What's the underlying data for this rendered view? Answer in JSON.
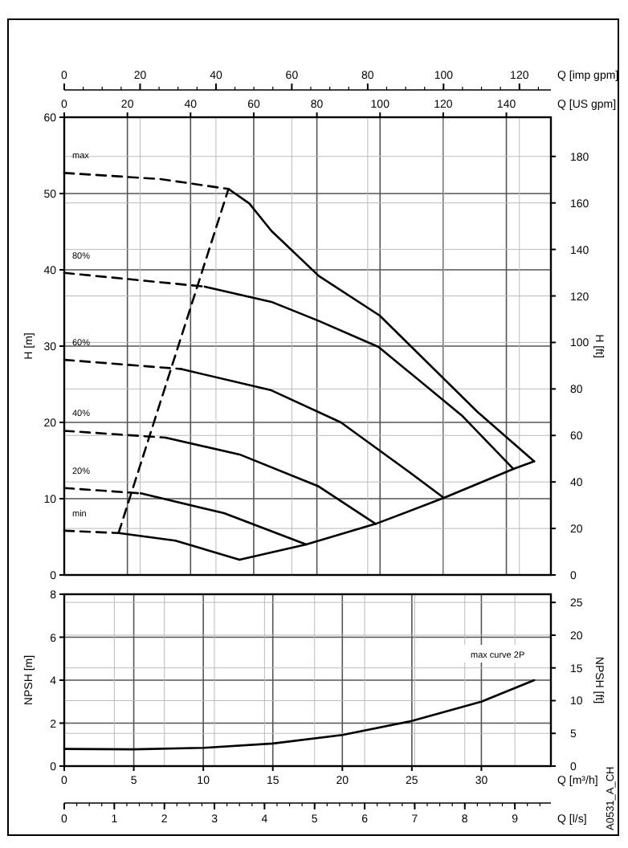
{
  "chart_data": [
    {
      "type": "line",
      "ylabel": "H [m]",
      "y2label": "H [ft]",
      "xlabel": "Q [US gpm]",
      "x2label": "Q [imp gpm]",
      "xlim": [
        0,
        154.1
      ],
      "xticks": [
        0,
        20,
        40,
        60,
        80,
        100,
        120,
        140
      ],
      "ylim": [
        0,
        60
      ],
      "yticks": [
        0,
        10,
        20,
        30,
        40,
        50,
        60
      ],
      "y2lim": [
        0,
        196.85
      ],
      "y2ticks": [
        0,
        20,
        40,
        60,
        80,
        100,
        120,
        140,
        160,
        180
      ],
      "x2lim": [
        0,
        128.3
      ],
      "x2ticks": [
        0,
        20,
        40,
        60,
        80,
        100,
        120
      ],
      "grid": true,
      "series": [
        {
          "name": "max",
          "color": "#000000",
          "line_style": "dashed",
          "x": [
            0,
            30.4,
            52.0
          ],
          "values": [
            52.7,
            51.9,
            50.6
          ]
        },
        {
          "color": "#000000",
          "line_style": "solid",
          "x": [
            52.0,
            58.6,
            65.6,
            80.6,
            99.9,
            130.8,
            148.8
          ],
          "values": [
            50.6,
            48.7,
            45.1,
            39.2,
            34.0,
            21.4,
            14.9
          ]
        },
        {
          "name": "80%",
          "color": "#000000",
          "line_style": "dashed",
          "x": [
            0,
            44.5
          ],
          "values": [
            39.6,
            37.8
          ]
        },
        {
          "color": "#000000",
          "line_style": "solid",
          "x": [
            44.5,
            65.6,
            80.6,
            99.5,
            125.9,
            142.2
          ],
          "values": [
            37.8,
            35.8,
            33.3,
            29.9,
            20.9,
            13.9
          ]
        },
        {
          "name": "60%",
          "color": "#000000",
          "line_style": "dashed",
          "x": [
            0,
            37.0
          ],
          "values": [
            28.2,
            27.0
          ]
        },
        {
          "color": "#000000",
          "line_style": "solid",
          "x": [
            37.0,
            65.6,
            87.6,
            107.9,
            120.2
          ],
          "values": [
            27.0,
            24.2,
            20.0,
            13.9,
            10.1
          ]
        },
        {
          "name": "40%",
          "color": "#000000",
          "line_style": "dashed",
          "x": [
            0,
            32.1
          ],
          "values": [
            18.9,
            18.0
          ]
        },
        {
          "color": "#000000",
          "line_style": "solid",
          "x": [
            32.1,
            55.5,
            80.6,
            98.6
          ],
          "values": [
            18.0,
            15.8,
            11.6,
            6.7
          ]
        },
        {
          "name": "20%",
          "color": "#000000",
          "line_style": "dashed",
          "x": [
            0,
            24.2
          ],
          "values": [
            11.4,
            10.7
          ]
        },
        {
          "color": "#000000",
          "line_style": "solid",
          "x": [
            24.2,
            50.6,
            76.6
          ],
          "values": [
            10.7,
            8.1,
            4.0
          ]
        },
        {
          "name": "min",
          "color": "#000000",
          "line_style": "dashed",
          "x": [
            0,
            17.2
          ],
          "values": [
            5.8,
            5.5
          ]
        },
        {
          "color": "#000000",
          "line_style": "solid",
          "x": [
            17.2,
            35.2,
            55.5
          ],
          "values": [
            5.5,
            4.5,
            2.0
          ]
        },
        {
          "color": "#000000",
          "line_style": "solid",
          "x": [
            55.5,
            76.6,
            98.6,
            120.2,
            142.2,
            148.8
          ],
          "values": [
            2.0,
            4.0,
            6.7,
            10.1,
            13.9,
            14.9
          ]
        },
        {
          "color": "#000000",
          "line_style": "dashed",
          "x": [
            17.2,
            52.0
          ],
          "values": [
            5.5,
            50.6
          ]
        }
      ]
    },
    {
      "type": "line",
      "xlabel": "Q [m³/h]",
      "x2label": "Q [l/s]",
      "ylabel": "NPSH [m]",
      "y2label": "NPSH [ft]",
      "xlim": [
        0,
        35
      ],
      "xticks": [
        0,
        5,
        10,
        15,
        20,
        25,
        30
      ],
      "x2lim": [
        0,
        9.72
      ],
      "x2ticks": [
        0,
        1,
        2,
        3,
        4,
        5,
        6,
        7,
        8,
        9
      ],
      "ylim": [
        0,
        8
      ],
      "yticks": [
        0,
        2,
        4,
        6,
        8
      ],
      "y2lim": [
        0,
        26.25
      ],
      "y2ticks": [
        0,
        5,
        10,
        15,
        20,
        25
      ],
      "grid": true,
      "annotations": [
        "A0531_A_CH"
      ],
      "series": [
        {
          "name": "max curve 2P",
          "color": "#000000",
          "line_style": "solid",
          "x": [
            0,
            5,
            10,
            15,
            20,
            25,
            30,
            33.8
          ],
          "values": [
            0.8,
            0.78,
            0.85,
            1.05,
            1.45,
            2.1,
            3.0,
            4.0
          ]
        }
      ]
    }
  ]
}
